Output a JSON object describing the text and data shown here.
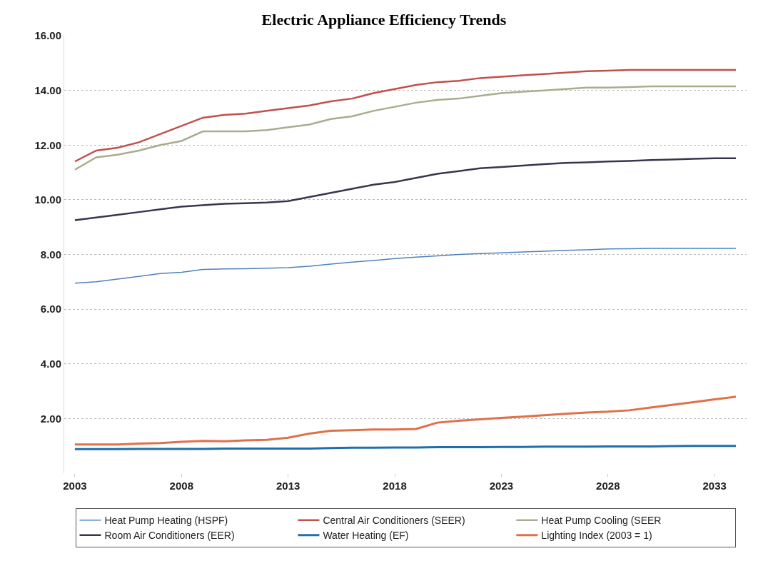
{
  "chart_data": {
    "type": "line",
    "title": "Electric Appliance Efficiency Trends",
    "x": [
      2003,
      2004,
      2005,
      2006,
      2007,
      2008,
      2009,
      2010,
      2011,
      2012,
      2013,
      2014,
      2015,
      2016,
      2017,
      2018,
      2019,
      2020,
      2021,
      2022,
      2023,
      2024,
      2025,
      2026,
      2027,
      2028,
      2029,
      2030,
      2031,
      2032,
      2033,
      2034
    ],
    "series": [
      {
        "name": "Heat Pump Heating (HSPF)",
        "color": "#4f81bd",
        "values": [
          6.95,
          7.0,
          7.1,
          7.2,
          7.3,
          7.35,
          7.45,
          7.47,
          7.48,
          7.5,
          7.52,
          7.57,
          7.65,
          7.72,
          7.78,
          7.85,
          7.9,
          7.95,
          8.0,
          8.03,
          8.06,
          8.09,
          8.12,
          8.15,
          8.17,
          8.2,
          8.21,
          8.22,
          8.22,
          8.22,
          8.22,
          8.22
        ]
      },
      {
        "name": "Central Air Conditioners (SEER)",
        "color": "#c0504d",
        "values": [
          11.4,
          11.8,
          11.9,
          12.1,
          12.4,
          12.7,
          13.0,
          13.1,
          13.15,
          13.25,
          13.35,
          13.45,
          13.6,
          13.7,
          13.9,
          14.05,
          14.2,
          14.3,
          14.35,
          14.45,
          14.5,
          14.55,
          14.6,
          14.65,
          14.7,
          14.72,
          14.75,
          14.75,
          14.75,
          14.75,
          14.75,
          14.75
        ]
      },
      {
        "name": "Heat Pump Cooling (SEER",
        "color": "#a8ad8c",
        "values": [
          11.1,
          11.55,
          11.65,
          11.8,
          12.0,
          12.15,
          12.5,
          12.5,
          12.5,
          12.55,
          12.65,
          12.75,
          12.95,
          13.05,
          13.25,
          13.4,
          13.55,
          13.65,
          13.7,
          13.8,
          13.9,
          13.95,
          14.0,
          14.05,
          14.1,
          14.1,
          14.12,
          14.15,
          14.15,
          14.15,
          14.15,
          14.15
        ]
      },
      {
        "name": "Room Air Conditioners (EER)",
        "color": "#3b3450",
        "values": [
          9.25,
          9.35,
          9.45,
          9.55,
          9.65,
          9.75,
          9.8,
          9.85,
          9.87,
          9.9,
          9.95,
          10.1,
          10.25,
          10.4,
          10.55,
          10.65,
          10.8,
          10.95,
          11.05,
          11.15,
          11.2,
          11.25,
          11.3,
          11.35,
          11.37,
          11.4,
          11.42,
          11.45,
          11.47,
          11.5,
          11.52,
          11.52
        ]
      },
      {
        "name": "Water Heating (EF)",
        "color": "#1f6fad",
        "values": [
          0.88,
          0.88,
          0.88,
          0.89,
          0.89,
          0.89,
          0.89,
          0.9,
          0.9,
          0.9,
          0.9,
          0.9,
          0.92,
          0.93,
          0.93,
          0.94,
          0.94,
          0.95,
          0.95,
          0.95,
          0.96,
          0.96,
          0.97,
          0.97,
          0.97,
          0.98,
          0.98,
          0.98,
          0.99,
          1.0,
          1.0,
          1.0
        ]
      },
      {
        "name": "Lighting Index (2003 = 1)",
        "color": "#e0704a",
        "values": [
          1.05,
          1.05,
          1.05,
          1.08,
          1.1,
          1.15,
          1.18,
          1.17,
          1.2,
          1.22,
          1.3,
          1.45,
          1.55,
          1.57,
          1.6,
          1.6,
          1.62,
          1.85,
          1.92,
          1.97,
          2.02,
          2.07,
          2.12,
          2.17,
          2.22,
          2.25,
          2.3,
          2.4,
          2.5,
          2.6,
          2.7,
          2.8
        ]
      }
    ],
    "xlim": [
      2002.5,
      2034.5
    ],
    "xticks": [
      2003,
      2008,
      2013,
      2018,
      2023,
      2028,
      2033
    ],
    "ylim": [
      0,
      16
    ],
    "yticks": [
      {
        "value": 2,
        "label": "2.00"
      },
      {
        "value": 4,
        "label": "4.00"
      },
      {
        "value": 6,
        "label": "6.00"
      },
      {
        "value": 8,
        "label": "8.00"
      },
      {
        "value": 10,
        "label": "10.00"
      },
      {
        "value": 12,
        "label": "12.00"
      },
      {
        "value": 14,
        "label": "14.00"
      },
      {
        "value": 16,
        "label": "16.00"
      }
    ],
    "grid": "y",
    "legend": "bottom",
    "marker": "none",
    "line_style": "solid"
  }
}
